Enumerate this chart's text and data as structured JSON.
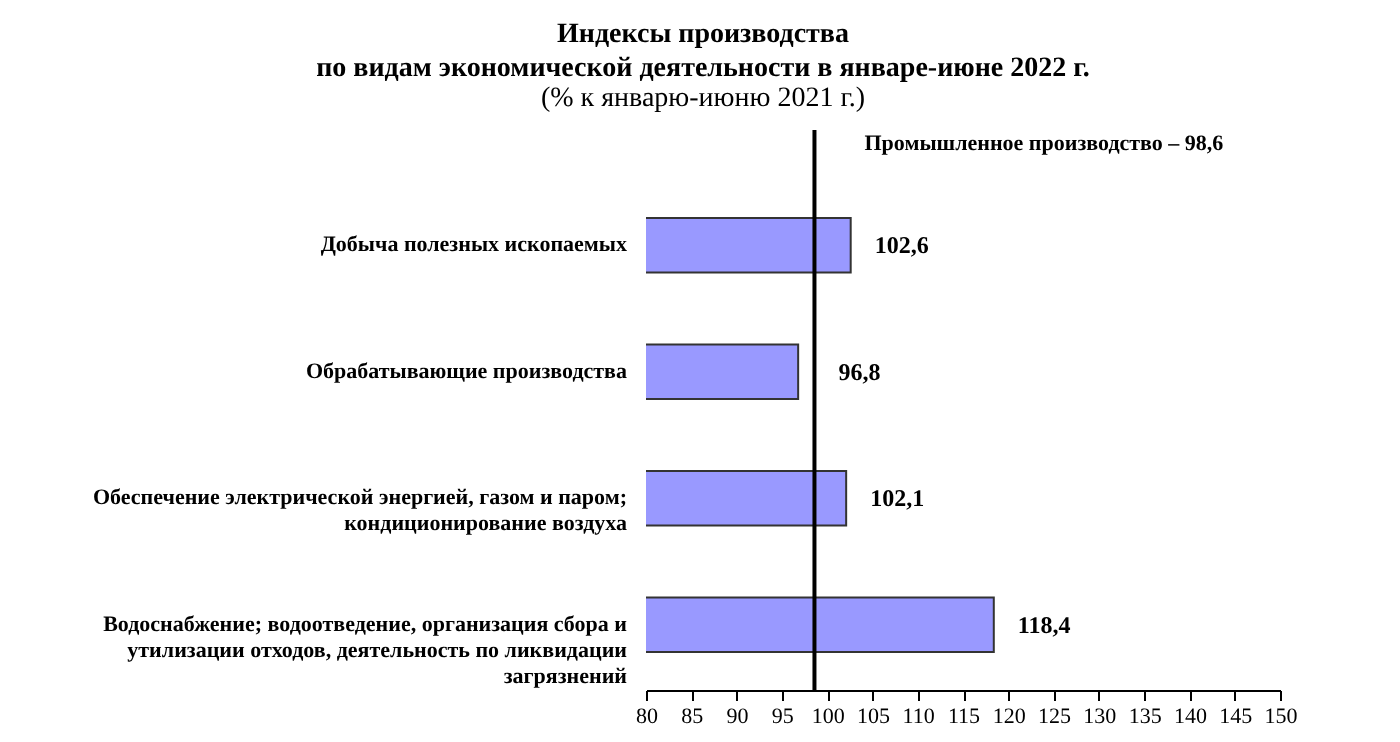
{
  "chart_data": {
    "type": "bar",
    "orientation": "horizontal",
    "title": "Индексы производства\nпо видам экономической деятельности в январе-июне 2022 г.",
    "subtitle": "(% к январю-июню 2021 г.)",
    "categories": [
      "Добыча полезных ископаемых",
      "Обрабатывающие производства",
      "Обеспечение электрической энергией, газом и паром;\nкондиционирование воздуха",
      "Водоснабжение; водоотведение, организация сбора и\nутилизации отходов, деятельность по ликвидации\nзагрязнений"
    ],
    "values": [
      102.6,
      96.8,
      102.1,
      118.4
    ],
    "value_labels": [
      "102,6",
      "96,8",
      "102,1",
      "118,4"
    ],
    "color": "#9999ff",
    "xlim": [
      80,
      150
    ],
    "xticks": [
      80,
      85,
      90,
      95,
      100,
      105,
      110,
      115,
      120,
      125,
      130,
      135,
      140,
      145,
      150
    ],
    "ref_lines": [
      {
        "axis": "x",
        "value": 98.6,
        "label": "Промышленное производство – 98,6",
        "color": "#000000"
      }
    ],
    "grid": false
  }
}
